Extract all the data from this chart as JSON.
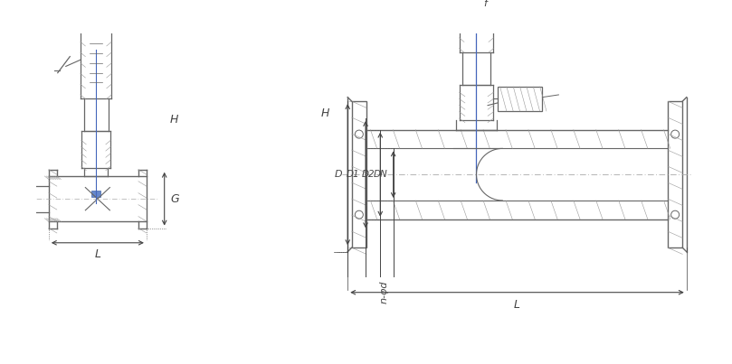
{
  "bg_color": "#ffffff",
  "lc": "#666666",
  "lc2": "#888888",
  "dc": "#444444",
  "hc": "#999999",
  "hc2": "#aaaaaa",
  "blue": "#4466bb",
  "red_accent": "#cc4444",
  "figsize": [
    8.09,
    4.03
  ],
  "dpi": 100,
  "labels": {
    "H": "H",
    "G": "G",
    "L": "L",
    "f": "f",
    "D": "D",
    "D1": "D1",
    "D2": "D2",
    "DN": "DN",
    "n_phi_d": "n-φd"
  }
}
